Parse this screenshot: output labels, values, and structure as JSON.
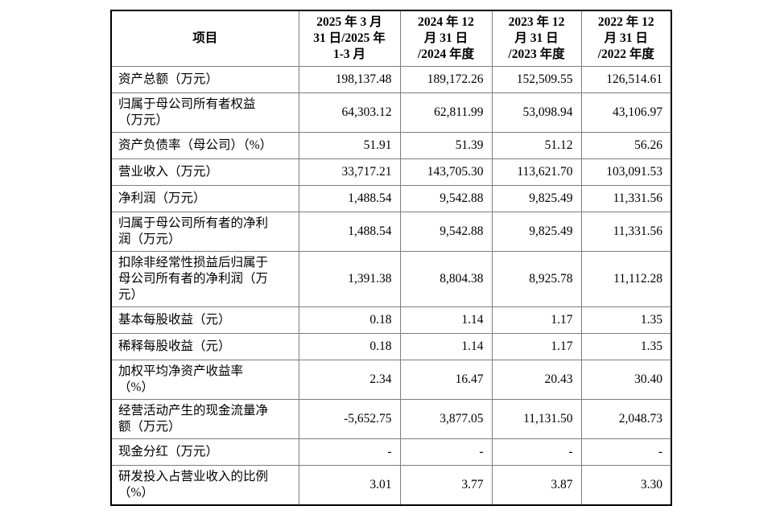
{
  "table": {
    "header": {
      "item_label": "项目",
      "periods": [
        "2025 年 3 月\n31 日/2025 年\n1-3 月",
        "2024 年 12\n月 31 日\n/2024 年度",
        "2023 年 12\n月 31 日\n/2023 年度",
        "2022 年 12\n月 31 日\n/2022 年度"
      ]
    },
    "rows": [
      {
        "label": "资产总额（万元）",
        "values": [
          "198,137.48",
          "189,172.26",
          "152,509.55",
          "126,514.61"
        ]
      },
      {
        "label": "归属于母公司所有者权益\n（万元）",
        "values": [
          "64,303.12",
          "62,811.99",
          "53,098.94",
          "43,106.97"
        ]
      },
      {
        "label": "资产负债率（母公司）（%）",
        "values": [
          "51.91",
          "51.39",
          "51.12",
          "56.26"
        ]
      },
      {
        "label": "营业收入（万元）",
        "values": [
          "33,717.21",
          "143,705.30",
          "113,621.70",
          "103,091.53"
        ]
      },
      {
        "label": "净利润（万元）",
        "values": [
          "1,488.54",
          "9,542.88",
          "9,825.49",
          "11,331.56"
        ]
      },
      {
        "label": "归属于母公司所有者的净利\n润（万元）",
        "values": [
          "1,488.54",
          "9,542.88",
          "9,825.49",
          "11,331.56"
        ]
      },
      {
        "label": "扣除非经常性损益后归属于\n母公司所有者的净利润（万\n元）",
        "values": [
          "1,391.38",
          "8,804.38",
          "8,925.78",
          "11,112.28"
        ]
      },
      {
        "label": "基本每股收益（元）",
        "values": [
          "0.18",
          "1.14",
          "1.17",
          "1.35"
        ]
      },
      {
        "label": "稀释每股收益（元）",
        "values": [
          "0.18",
          "1.14",
          "1.17",
          "1.35"
        ]
      },
      {
        "label": "加权平均净资产收益率\n（%）",
        "values": [
          "2.34",
          "16.47",
          "20.43",
          "30.40"
        ]
      },
      {
        "label": "经营活动产生的现金流量净\n额（万元）",
        "values": [
          "-5,652.75",
          "3,877.05",
          "11,131.50",
          "2,048.73"
        ]
      },
      {
        "label": "现金分红（万元）",
        "values": [
          "-",
          "-",
          "-",
          "-"
        ]
      },
      {
        "label": "研发投入占营业收入的比例\n（%）",
        "values": [
          "3.01",
          "3.77",
          "3.87",
          "3.30"
        ]
      }
    ]
  }
}
